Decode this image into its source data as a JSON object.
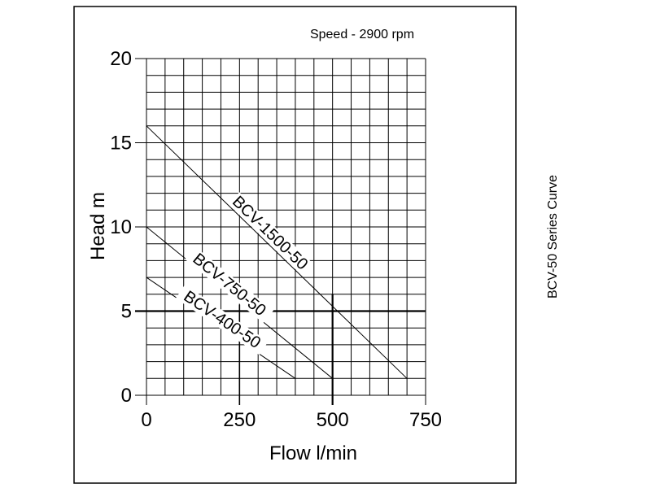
{
  "side_title": "BCV-50 Series Curve",
  "chart_data": {
    "type": "line",
    "title": "",
    "annotation": "Speed - 2900 rpm",
    "xlabel": "Flow l/min",
    "ylabel": "Head m",
    "xlim": [
      0,
      750
    ],
    "ylim": [
      0,
      20
    ],
    "x_ticks": [
      "0",
      "250",
      "500",
      "750"
    ],
    "y_ticks": [
      "0",
      "5",
      "10",
      "15",
      "20"
    ],
    "grid": true,
    "reference_lines": {
      "x": 500,
      "y": 5
    },
    "series": [
      {
        "name": "BCV-1500-50",
        "x": [
          0,
          700
        ],
        "y": [
          16,
          1
        ]
      },
      {
        "name": "BCV-750-50",
        "x": [
          0,
          500
        ],
        "y": [
          10,
          1
        ]
      },
      {
        "name": "BCV-400-50",
        "x": [
          0,
          400
        ],
        "y": [
          7,
          1
        ]
      }
    ]
  }
}
